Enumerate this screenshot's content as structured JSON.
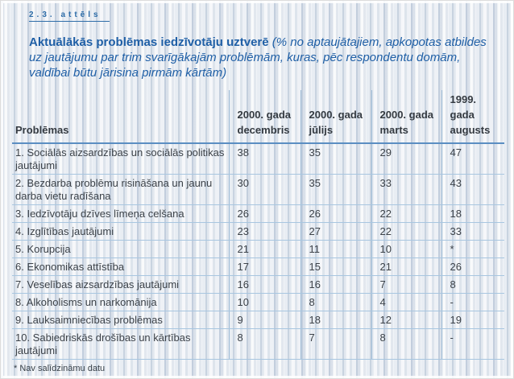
{
  "figure_label": "2.3. attēls",
  "title": {
    "main": "Aktuālākās problēmas iedzīvotāju uztverē",
    "subtitle": "(% no aptaujātajiem, apkopotas atbildes uz jautājumu par trim svarīgākajām problēmām, kuras, pēc respondentu domām, valdībai būtu jārisina pirmām kārtām)"
  },
  "table": {
    "columns": [
      "Problēmas",
      "2000. gada decembris",
      "2000. gada jūlijs",
      "2000. gada marts",
      "1999. gada augusts"
    ],
    "rows": [
      {
        "cells": [
          "1. Sociālās aizsardzības un sociālās politikas jautājumi",
          "38",
          "35",
          "29",
          "47"
        ]
      },
      {
        "cells": [
          "2. Bezdarba problēmu risināšana un jaunu darba vietu radīšana",
          "30",
          "35",
          "33",
          "43"
        ]
      },
      {
        "cells": [
          "3. Iedzīvotāju dzīves līmeņa celšana",
          "26",
          "26",
          "22",
          "18"
        ]
      },
      {
        "cells": [
          "4. Izglītības jautājumi",
          "23",
          "27",
          "22",
          "33"
        ]
      },
      {
        "cells": [
          "5. Korupcija",
          "21",
          "11",
          "10",
          "*"
        ]
      },
      {
        "cells": [
          "6. Ekonomikas attīstība",
          "17",
          "15",
          "21",
          "26"
        ]
      },
      {
        "cells": [
          "7. Veselības aizsardzības jautājumi",
          "16",
          "16",
          "7",
          "8"
        ]
      },
      {
        "cells": [
          "8. Alkoholisms un narkomānija",
          "10",
          "8",
          "4",
          "-"
        ]
      },
      {
        "cells": [
          "9. Lauksaimniecības problēmas",
          "9",
          "18",
          "12",
          "19"
        ]
      },
      {
        "cells": [
          "10. Sabiedriskās drošības un kārtības jautājumi",
          "8",
          "7",
          "8",
          "-"
        ]
      }
    ]
  },
  "footnote": "* Nav salīdzināmu datu",
  "colors": {
    "title_blue": "#1f5fa6",
    "label_blue": "#2e6da8",
    "header_rule": "#5b8ec2",
    "row_rule": "#a8c6e0",
    "column_rule": "#9dbbd6",
    "body_text": "#3c4249",
    "background": "#e9edf2"
  }
}
